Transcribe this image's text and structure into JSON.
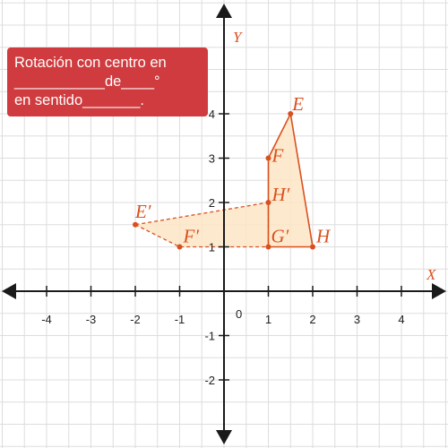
{
  "prompt": {
    "line1": "Rotación con centro en",
    "line2": "___________de____°",
    "line3": "en sentido_______."
  },
  "axes": {
    "x_name": "X",
    "y_name": "Y",
    "origin_label": "0",
    "xlim": [
      -5,
      5
    ],
    "ylim": [
      -3,
      6
    ],
    "x_ticks": [
      -4,
      -3,
      -2,
      -1,
      1,
      2,
      3,
      4
    ],
    "y_ticks": [
      -2,
      -1,
      1,
      2,
      3,
      4
    ],
    "grid": true
  },
  "colors": {
    "grid": "#dddddd",
    "axis": "#1a1a1a",
    "figure": "#d9501f",
    "fill": "#fde5c4",
    "label": "#d9501f",
    "box": "#cf3b3e"
  },
  "original_figure": {
    "style": "solid",
    "points": [
      {
        "name": "E",
        "x": 1.5,
        "y": 4
      },
      {
        "name": "F",
        "x": 1,
        "y": 3
      },
      {
        "name": "G′",
        "x": 1,
        "y": 1
      },
      {
        "name": "H",
        "x": 2,
        "y": 1
      }
    ]
  },
  "image_figure": {
    "style": "dashed",
    "points": [
      {
        "name": "E′",
        "x": -2,
        "y": 1.5
      },
      {
        "name": "F′",
        "x": -1,
        "y": 1
      },
      {
        "name": "G′",
        "x": 1,
        "y": 1
      },
      {
        "name": "H′",
        "x": 1,
        "y": 2
      }
    ]
  },
  "labels": [
    {
      "text": "E",
      "x": 1.5,
      "y": 4
    },
    {
      "text": "F",
      "x": 1,
      "y": 3
    },
    {
      "text": "H′",
      "x": 1,
      "y": 2
    },
    {
      "text": "G′",
      "x": 1,
      "y": 1
    },
    {
      "text": "H",
      "x": 2,
      "y": 1
    },
    {
      "text": "E′",
      "x": -2,
      "y": 1.5
    },
    {
      "text": "F′",
      "x": -1,
      "y": 1
    }
  ]
}
